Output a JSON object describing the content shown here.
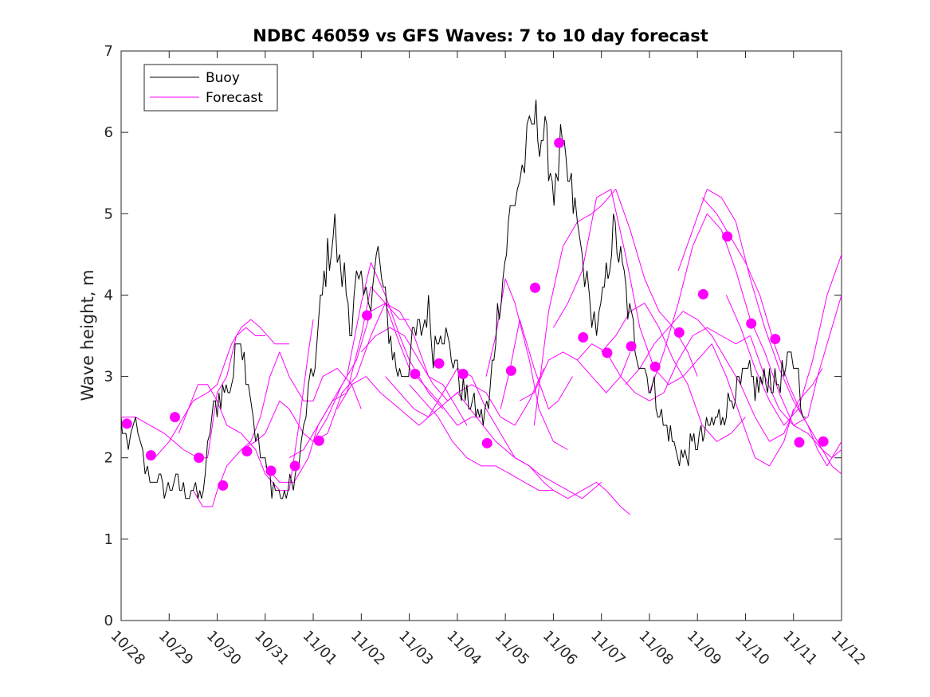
{
  "chart_data": {
    "type": "line",
    "title": "NDBC 46059 vs GFS Waves: 7 to 10 day forecast",
    "xlabel": "",
    "ylabel": "Wave height, m",
    "xlim": [
      0,
      15
    ],
    "ylim": [
      0,
      7
    ],
    "yticks": [
      "0",
      "1",
      "2",
      "3",
      "4",
      "5",
      "6",
      "7"
    ],
    "xticks": [
      "10/28",
      "10/29",
      "10/30",
      "10/31",
      "11/01",
      "11/02",
      "11/03",
      "11/04",
      "11/05",
      "11/06",
      "11/07",
      "11/08",
      "11/09",
      "11/10",
      "11/11",
      "11/12"
    ],
    "legend": {
      "position": "top-left",
      "entries": [
        "Buoy",
        "Forecast"
      ]
    },
    "colors": {
      "buoy": "#000000",
      "forecast": "#ff00ff",
      "marker": "#ff00ff",
      "axis": "#262626"
    },
    "buoy_anchor": {
      "x": [
        0.0,
        0.05,
        0.15,
        0.25,
        0.35,
        0.45,
        0.55,
        0.65,
        0.75,
        0.9,
        1.1,
        1.3,
        1.5,
        1.6,
        1.75,
        1.85,
        2.0,
        2.15,
        2.3,
        2.45,
        2.6,
        2.7,
        2.8,
        2.9,
        3.0,
        3.1,
        3.25,
        3.4,
        3.55,
        3.7,
        3.8,
        3.9,
        4.0,
        4.15,
        4.3,
        4.45,
        4.55,
        4.65,
        4.8,
        4.9,
        5.0,
        5.1,
        5.2,
        5.35,
        5.5,
        5.65,
        5.8,
        5.95,
        6.1,
        6.25,
        6.4,
        6.5,
        6.65,
        6.8,
        6.95,
        7.05,
        7.2,
        7.35,
        7.5,
        7.65,
        7.8,
        7.95,
        8.1,
        8.2,
        8.3,
        8.4,
        8.5,
        8.6,
        8.75,
        8.9,
        9.05,
        9.15,
        9.3,
        9.45,
        9.55,
        9.65,
        9.75,
        9.85,
        9.95,
        10.1,
        10.25,
        10.4,
        10.55,
        10.7,
        10.85,
        10.95,
        11.1,
        11.25,
        11.4,
        11.55,
        11.7,
        11.85,
        12.0,
        12.15,
        12.3,
        12.45,
        12.6,
        12.75,
        12.9,
        13.05,
        13.2,
        13.35,
        13.5,
        13.65,
        13.8,
        13.95,
        14.05,
        14.15,
        14.25
      ],
      "y": [
        2.4,
        2.3,
        2.0,
        2.5,
        2.2,
        2.0,
        1.8,
        1.7,
        1.8,
        1.6,
        1.7,
        1.6,
        1.6,
        1.5,
        1.7,
        2.4,
        2.7,
        2.8,
        2.9,
        3.6,
        3.1,
        2.8,
        2.3,
        2.0,
        1.9,
        1.7,
        1.6,
        1.5,
        1.7,
        1.9,
        2.3,
        2.8,
        3.0,
        3.8,
        4.5,
        4.8,
        4.3,
        4.2,
        3.6,
        4.1,
        4.0,
        3.9,
        4.1,
        4.5,
        3.9,
        3.3,
        3.0,
        3.1,
        3.5,
        3.6,
        3.8,
        3.3,
        3.7,
        3.4,
        3.2,
        2.9,
        2.7,
        2.6,
        2.5,
        2.6,
        3.6,
        4.2,
        5.0,
        5.2,
        5.4,
        5.6,
        5.9,
        6.2,
        6.0,
        5.7,
        5.2,
        5.8,
        5.4,
        5.0,
        4.6,
        4.3,
        3.9,
        3.7,
        3.6,
        4.2,
        4.8,
        4.4,
        3.9,
        3.4,
        3.2,
        3.0,
        2.8,
        2.5,
        2.3,
        2.1,
        2.0,
        2.1,
        2.2,
        2.3,
        2.4,
        2.5,
        2.6,
        2.8,
        2.9,
        3.0,
        2.9,
        2.9,
        3.0,
        2.9,
        3.0,
        3.2,
        3.2,
        2.8,
        2.5
      ]
    },
    "forecast_series": [
      {
        "x": [
          0.0,
          0.3,
          0.6,
          0.9,
          1.1,
          1.3,
          1.6,
          1.8,
          2.0,
          2.2,
          2.4,
          2.6,
          2.8,
          3.0
        ],
        "y": [
          2.5,
          2.5,
          2.4,
          2.3,
          2.2,
          2.1,
          2.0,
          2.0,
          2.8,
          3.0,
          3.5,
          3.6,
          3.5,
          3.5
        ]
      },
      {
        "x": [
          0.7,
          1.0,
          1.2,
          1.5,
          1.8,
          2.0,
          2.3,
          2.5,
          2.7,
          2.9,
          3.2,
          3.5
        ],
        "y": [
          2.0,
          2.2,
          2.4,
          2.7,
          2.8,
          2.9,
          3.4,
          3.6,
          3.7,
          3.6,
          3.4,
          3.4
        ]
      },
      {
        "x": [
          1.2,
          1.4,
          1.6,
          1.8,
          2.0,
          2.2,
          2.5,
          2.8,
          3.0,
          3.3,
          3.5,
          3.7,
          3.9,
          4.0
        ],
        "y": [
          2.3,
          2.6,
          2.9,
          2.9,
          2.7,
          2.4,
          2.3,
          2.1,
          1.8,
          1.6,
          1.6,
          2.4,
          3.3,
          3.7
        ]
      },
      {
        "x": [
          1.5,
          1.7,
          1.9,
          2.0,
          2.2,
          2.5,
          2.7,
          2.9,
          3.1,
          3.3,
          3.5,
          3.8,
          4.0,
          4.2,
          4.5,
          4.8,
          5.0
        ],
        "y": [
          1.6,
          1.4,
          1.4,
          1.6,
          1.9,
          2.1,
          2.2,
          2.5,
          3.0,
          3.3,
          3.0,
          2.7,
          2.7,
          3.0,
          3.1,
          2.9,
          2.6
        ]
      },
      {
        "x": [
          2.5,
          2.8,
          3.0,
          3.3,
          3.5,
          3.8,
          4.0,
          4.3,
          4.6,
          4.9,
          5.2,
          5.5,
          5.8,
          6.0
        ],
        "y": [
          2.1,
          2.2,
          2.3,
          2.7,
          2.6,
          2.3,
          2.2,
          2.3,
          2.8,
          3.0,
          3.5,
          3.9,
          3.7,
          3.7
        ]
      },
      {
        "x": [
          3.0,
          3.3,
          3.6,
          3.9,
          4.1,
          4.4,
          4.7,
          5.0,
          5.2,
          5.5,
          5.8,
          6.0,
          6.2,
          6.4,
          6.7
        ],
        "y": [
          1.9,
          1.7,
          1.7,
          2.0,
          2.4,
          2.7,
          3.0,
          3.9,
          4.4,
          4.0,
          3.5,
          3.2,
          3.0,
          2.8,
          2.6
        ]
      },
      {
        "x": [
          3.5,
          3.8,
          4.1,
          4.4,
          4.7,
          5.0,
          5.2,
          5.5,
          5.8,
          6.0,
          6.3,
          6.6,
          7.0,
          7.3,
          7.5
        ],
        "y": [
          2.0,
          2.1,
          2.4,
          2.7,
          2.8,
          3.5,
          4.1,
          3.9,
          3.4,
          3.1,
          2.9,
          2.7,
          2.4,
          2.5,
          2.5
        ]
      },
      {
        "x": [
          4.0,
          4.3,
          4.6,
          4.9,
          5.2,
          5.5,
          5.8,
          6.1,
          6.4,
          6.7,
          7.0,
          7.2
        ],
        "y": [
          2.2,
          2.5,
          2.9,
          3.2,
          3.8,
          3.9,
          3.8,
          3.5,
          3.0,
          2.9,
          2.6,
          2.4
        ]
      },
      {
        "x": [
          4.5,
          4.8,
          5.1,
          5.4,
          5.8,
          6.2,
          6.6,
          7.0,
          7.4,
          7.8,
          8.2,
          8.5,
          8.8,
          9.0
        ],
        "y": [
          2.6,
          2.9,
          3.0,
          2.8,
          2.6,
          2.4,
          2.6,
          2.8,
          2.5,
          2.2,
          2.0,
          1.9,
          1.7,
          1.6
        ]
      },
      {
        "x": [
          5.0,
          5.3,
          5.6,
          5.9,
          6.2,
          6.5,
          6.8,
          7.0,
          7.3,
          7.6,
          7.9,
          8.2,
          8.5,
          8.8
        ],
        "y": [
          3.3,
          3.5,
          3.6,
          3.5,
          3.2,
          2.9,
          2.7,
          2.8,
          2.9,
          2.8,
          2.5,
          2.4,
          2.7,
          3.1
        ]
      },
      {
        "x": [
          5.5,
          5.8,
          6.1,
          6.4,
          6.7,
          7.0,
          7.3,
          7.6,
          7.9,
          8.2,
          8.5,
          8.7,
          9.0,
          9.3,
          9.6,
          9.8,
          10.0
        ],
        "y": [
          3.0,
          2.8,
          2.6,
          2.5,
          2.8,
          3.1,
          3.0,
          2.6,
          2.3,
          2.0,
          1.9,
          1.8,
          1.7,
          1.6,
          1.5,
          1.6,
          1.7
        ]
      },
      {
        "x": [
          6.0,
          6.3,
          6.6,
          6.9,
          7.2,
          7.5,
          7.8,
          8.1,
          8.4,
          8.7,
          9.0,
          9.3,
          9.6,
          9.9,
          10.1,
          10.4,
          10.6
        ],
        "y": [
          2.9,
          2.7,
          2.5,
          2.2,
          2.0,
          1.9,
          1.9,
          1.8,
          1.7,
          1.6,
          1.6,
          1.5,
          1.6,
          1.7,
          1.6,
          1.4,
          1.3
        ]
      },
      {
        "x": [
          7.6,
          7.8,
          8.0,
          8.2,
          8.5,
          8.7,
          9.0,
          9.3
        ],
        "y": [
          3.0,
          3.5,
          4.2,
          3.9,
          3.2,
          2.6,
          2.2,
          2.1
        ]
      },
      {
        "x": [
          7.9,
          8.1,
          8.3,
          8.6,
          8.9,
          9.1,
          9.4
        ],
        "y": [
          2.6,
          3.1,
          3.7,
          3.1,
          2.6,
          2.7,
          3.0
        ]
      },
      {
        "x": [
          8.3,
          8.6,
          8.9,
          9.2,
          9.5,
          9.8,
          10.1,
          10.4,
          10.6
        ],
        "y": [
          2.7,
          2.8,
          3.2,
          3.3,
          3.2,
          3.0,
          2.8,
          3.0,
          3.3
        ]
      },
      {
        "x": [
          8.6,
          8.9,
          9.2,
          9.5,
          9.8,
          10.0,
          10.3,
          10.6,
          10.9,
          11.2,
          11.5,
          11.8,
          12.0
        ],
        "y": [
          2.4,
          3.8,
          4.6,
          4.9,
          5.0,
          5.1,
          5.3,
          4.8,
          4.2,
          3.8,
          3.6,
          3.3,
          3.0
        ]
      },
      {
        "x": [
          9.0,
          9.3,
          9.6,
          9.9,
          10.2,
          10.5,
          10.8,
          11.1,
          11.4,
          11.7,
          12.0,
          12.3,
          12.6,
          12.9,
          13.2,
          13.5,
          13.8,
          14.0
        ],
        "y": [
          3.6,
          3.9,
          4.3,
          5.2,
          5.3,
          4.5,
          3.6,
          3.1,
          2.9,
          3.0,
          3.2,
          3.4,
          3.0,
          2.5,
          2.0,
          1.9,
          2.2,
          2.6
        ]
      },
      {
        "x": [
          9.5,
          9.8,
          10.1,
          10.4,
          10.7,
          11.0,
          11.3,
          11.6,
          11.9,
          12.2,
          12.5,
          12.8,
          13.1
        ],
        "y": [
          3.2,
          3.4,
          3.3,
          3.0,
          2.8,
          2.7,
          2.8,
          3.2,
          3.5,
          3.6,
          3.5,
          3.4,
          3.5
        ]
      },
      {
        "x": [
          10.0,
          10.3,
          10.6,
          10.9,
          11.2,
          11.5,
          11.8,
          12.1,
          12.4,
          12.7,
          13.0
        ],
        "y": [
          3.3,
          3.5,
          3.8,
          3.9,
          3.6,
          3.2,
          2.9,
          2.4,
          2.2,
          2.3,
          2.5
        ]
      },
      {
        "x": [
          10.5,
          10.8,
          11.1,
          11.4,
          11.7,
          12.0,
          12.3,
          12.6,
          12.9,
          13.2,
          13.5,
          13.8,
          14.1,
          14.4,
          14.6
        ],
        "y": [
          2.9,
          3.1,
          3.4,
          3.6,
          3.8,
          3.7,
          3.5,
          3.2,
          2.9,
          2.5,
          2.2,
          2.3,
          2.7,
          2.9,
          3.1
        ]
      },
      {
        "x": [
          11.0,
          11.3,
          11.6,
          11.9,
          12.2,
          12.5,
          12.8,
          13.1,
          13.4,
          13.7,
          14.0,
          14.3,
          14.5,
          14.8,
          15.0
        ],
        "y": [
          2.8,
          3.3,
          3.9,
          4.6,
          5.0,
          4.8,
          4.3,
          3.7,
          3.3,
          2.8,
          2.4,
          2.5,
          3.0,
          3.6,
          4.0
        ]
      },
      {
        "x": [
          11.6,
          11.9,
          12.2,
          12.5,
          12.8,
          13.1,
          13.4,
          13.7,
          14.0,
          14.3,
          14.5,
          14.7,
          15.0
        ],
        "y": [
          4.3,
          4.8,
          5.3,
          5.2,
          4.9,
          4.2,
          3.6,
          3.1,
          2.7,
          2.4,
          2.1,
          1.9,
          2.2
        ]
      },
      {
        "x": [
          12.1,
          12.4,
          12.7,
          13.0,
          13.3,
          13.6,
          13.9,
          14.2,
          14.5,
          14.8,
          15.0
        ],
        "y": [
          5.2,
          5.0,
          4.7,
          4.4,
          4.0,
          3.4,
          2.9,
          2.5,
          2.2,
          1.9,
          1.8
        ]
      },
      {
        "x": [
          12.6,
          12.9,
          13.2,
          13.5,
          13.8,
          14.1,
          14.4,
          14.7,
          15.0
        ],
        "y": [
          4.0,
          3.6,
          3.1,
          2.7,
          2.4,
          2.6,
          3.2,
          4.0,
          4.5
        ]
      },
      {
        "x": [
          13.1,
          13.4,
          13.7,
          14.0,
          14.3,
          14.6,
          14.8,
          15.0
        ],
        "y": [
          3.5,
          3.0,
          2.6,
          2.4,
          2.3,
          2.1,
          2.0,
          2.1
        ]
      }
    ],
    "markers": {
      "x": [
        0.12,
        0.62,
        1.12,
        1.62,
        2.12,
        2.62,
        3.12,
        3.62,
        4.12,
        5.12,
        6.12,
        6.62,
        7.12,
        7.62,
        8.12,
        8.62,
        9.12,
        9.62,
        10.12,
        10.62,
        11.12,
        11.62,
        12.12,
        12.62,
        13.12,
        13.62,
        14.12,
        14.62
      ],
      "y": [
        2.42,
        2.03,
        2.5,
        2.0,
        1.66,
        2.08,
        1.84,
        1.9,
        2.21,
        3.75,
        3.03,
        3.16,
        3.03,
        2.18,
        3.07,
        4.09,
        5.87,
        3.48,
        3.29,
        3.37,
        3.12,
        3.54,
        4.01,
        4.72,
        3.65,
        3.46,
        2.19,
        2.2
      ]
    }
  }
}
